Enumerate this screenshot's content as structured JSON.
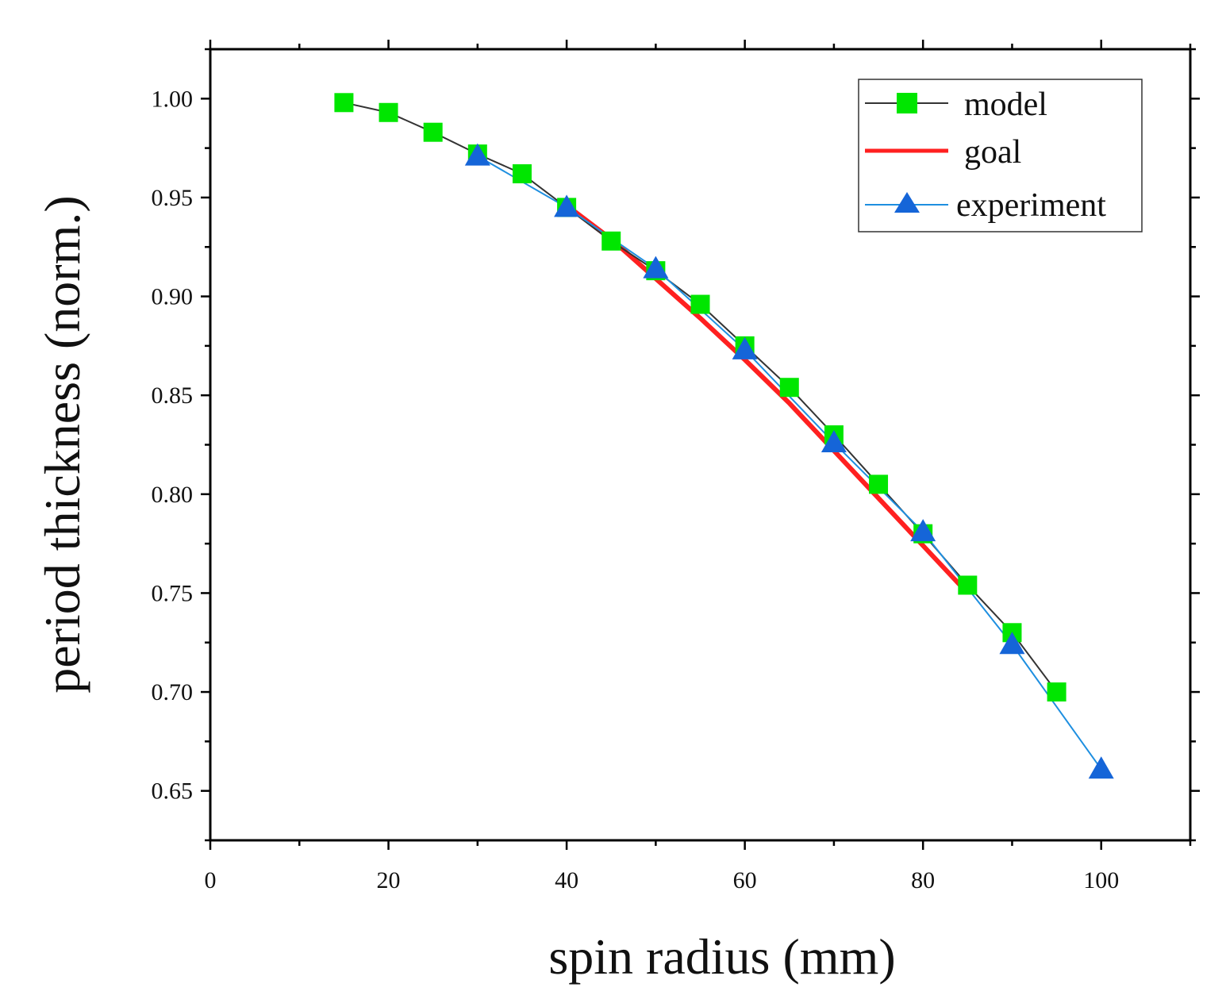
{
  "chart_data": {
    "type": "line",
    "title": "",
    "xlabel": "spin radius (mm)",
    "ylabel": "period thickness (norm.)",
    "xlim": [
      0,
      110
    ],
    "ylim": [
      0.625,
      1.025
    ],
    "xticks": [
      0,
      20,
      40,
      60,
      80,
      100
    ],
    "xtick_labels": [
      "0",
      "20",
      "40",
      "60",
      "80",
      "100"
    ],
    "yticks": [
      0.65,
      0.7,
      0.75,
      0.8,
      0.85,
      0.9,
      0.95,
      1.0
    ],
    "ytick_labels": [
      "0.65",
      "0.70",
      "0.75",
      "0.80",
      "0.85",
      "0.90",
      "0.95",
      "1.00"
    ],
    "legend_position": "top-right",
    "series": [
      {
        "name": "model",
        "color": "#333333",
        "marker": "square",
        "marker_color": "#00e600",
        "x": [
          15,
          20,
          25,
          30,
          35,
          40,
          45,
          50,
          55,
          60,
          65,
          70,
          75,
          80,
          85,
          90,
          95
        ],
        "values": [
          0.998,
          0.993,
          0.983,
          0.972,
          0.962,
          0.945,
          0.928,
          0.913,
          0.896,
          0.875,
          0.854,
          0.83,
          0.805,
          0.78,
          0.754,
          0.73,
          0.7
        ]
      },
      {
        "name": "goal",
        "color": "#ff2020",
        "marker": "none",
        "x": [
          40,
          45,
          50,
          55,
          60,
          65,
          70,
          75,
          80,
          85
        ],
        "values": [
          0.946,
          0.929,
          0.909,
          0.889,
          0.868,
          0.846,
          0.822,
          0.798,
          0.774,
          0.75
        ]
      },
      {
        "name": "experiment",
        "color": "#1e8fe0",
        "marker": "triangle",
        "marker_color": "#1565d8",
        "x": [
          30,
          40,
          50,
          60,
          70,
          80,
          90,
          100
        ],
        "values": [
          0.971,
          0.945,
          0.914,
          0.873,
          0.826,
          0.781,
          0.724,
          0.661
        ]
      }
    ]
  }
}
